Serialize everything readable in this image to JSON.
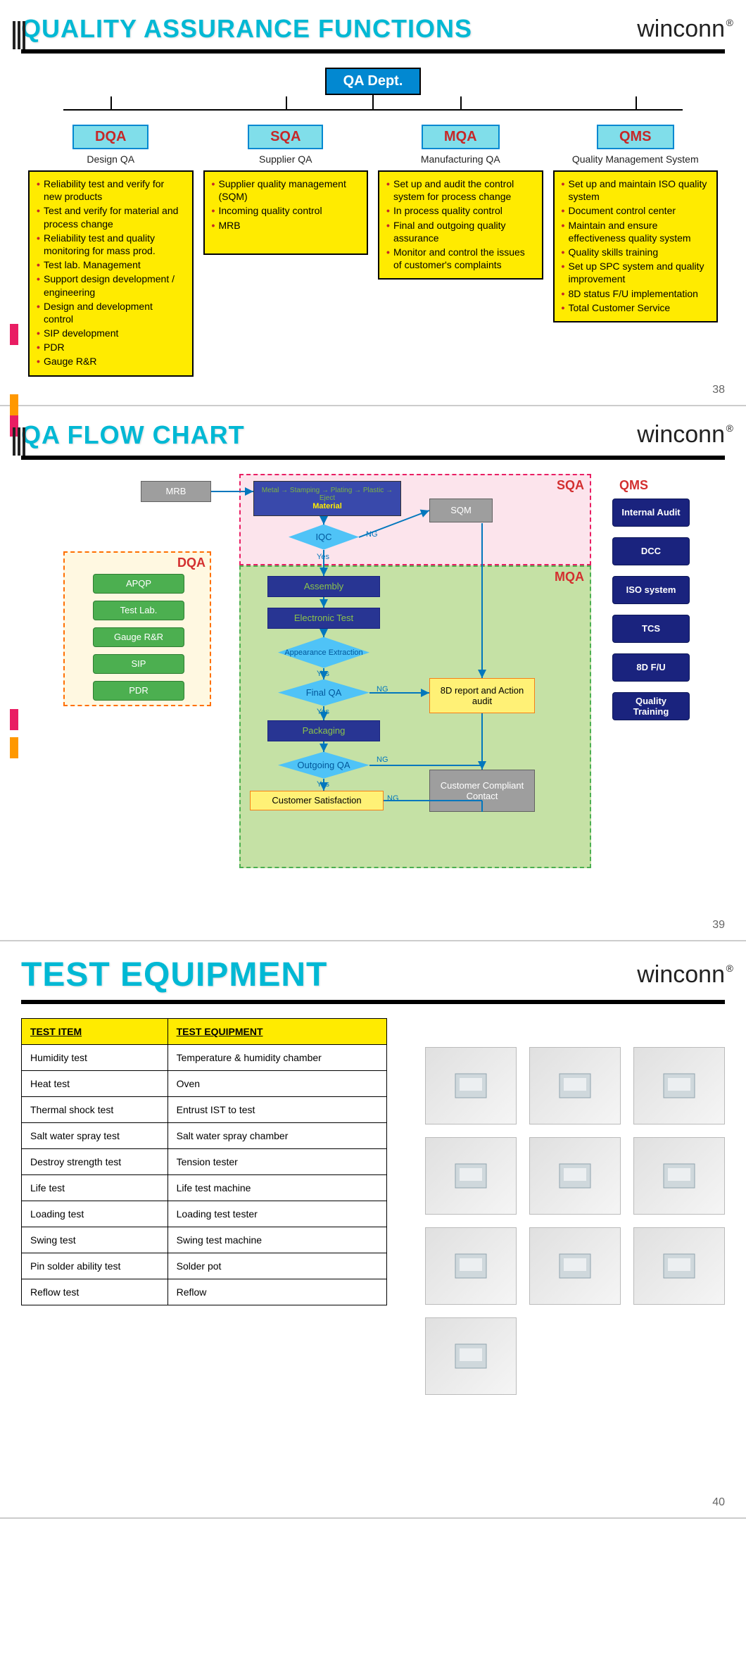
{
  "logo_text": "winconn",
  "logo_mark": "®",
  "slide1": {
    "title": "QUALITY ASSURANCE FUNCTIONS",
    "page": "38",
    "root": "QA Dept.",
    "cols": [
      {
        "code": "DQA",
        "sub": "Design QA",
        "items": [
          "Reliability test and verify for new products",
          "Test and verify for material and process change",
          "Reliability test and quality monitoring for mass prod.",
          "Test lab. Management",
          "Support design development / engineering",
          "Design and development control",
          "SIP development",
          "PDR",
          "Gauge R&R"
        ]
      },
      {
        "code": "SQA",
        "sub": "Supplier QA",
        "items": [
          "Supplier quality management (SQM)",
          "Incoming quality control",
          "MRB"
        ]
      },
      {
        "code": "MQA",
        "sub": "Manufacturing QA",
        "items": [
          "Set up and audit the control system for process change",
          "In process quality control",
          "Final and outgoing quality assurance",
          "Monitor and control the issues of customer's complaints"
        ]
      },
      {
        "code": "QMS",
        "sub": "Quality Management System",
        "items": [
          "Set up and maintain ISO quality system",
          "Document control center",
          "Maintain and ensure effectiveness quality system",
          "Quality skills training",
          "Set up SPC system and quality improvement",
          "8D status F/U implementation",
          "Total Customer Service"
        ]
      }
    ]
  },
  "slide2": {
    "title": "QA FLOW CHART",
    "page": "39",
    "regions": {
      "dqa": {
        "label": "DQA",
        "color": "#ff6f00",
        "bg": "#fff3e0"
      },
      "sqa": {
        "label": "SQA",
        "color": "#e91e63",
        "bg": "#fce4ec"
      },
      "mqa": {
        "label": "MQA",
        "color": "#d32f2f",
        "bg": "#c5e1a5"
      },
      "qms": {
        "label": "QMS",
        "color": "#d32f2f"
      }
    },
    "dqa_nodes": [
      "APQP",
      "Test Lab.",
      "Gauge R&R",
      "SIP",
      "PDR"
    ],
    "qms_nodes": [
      "Internal Audit",
      "DCC",
      "ISO system",
      "TCS",
      "8D F/U",
      "Quality Training"
    ],
    "flow": {
      "mrb": "MRB",
      "material_top": "Metal → Stamping → Plating → Plastic → Eject",
      "material": "Material",
      "sqm": "SQM",
      "iqc": "IQC",
      "assembly": "Assembly",
      "etest": "Electronic Test",
      "appearance": "Appearance Extraction",
      "finalqa": "Final QA",
      "packaging": "Packaging",
      "outgoing": "Outgoing QA",
      "cs": "Customer Satisfaction",
      "eightd": "8D report and Action audit",
      "ccc": "Customer Compliant Contact",
      "yes": "Yes",
      "ng": "NG"
    }
  },
  "slide3": {
    "title": "TEST EQUIPMENT",
    "page": "40",
    "headers": [
      "TEST ITEM",
      "TEST EQUIPMENT"
    ],
    "rows": [
      [
        "Humidity test",
        "Temperature & humidity chamber"
      ],
      [
        "Heat test",
        "Oven"
      ],
      [
        "Thermal shock test",
        "Entrust IST to test"
      ],
      [
        "Salt water spray test",
        "Salt water spray chamber"
      ],
      [
        "Destroy strength test",
        "Tension tester"
      ],
      [
        "Life test",
        "Life test machine"
      ],
      [
        "Loading test",
        "Loading test tester"
      ],
      [
        "Swing test",
        "Swing test machine"
      ],
      [
        "Pin solder ability test",
        "Solder pot"
      ],
      [
        "Reflow test",
        "Reflow"
      ]
    ],
    "images_count": 10
  }
}
